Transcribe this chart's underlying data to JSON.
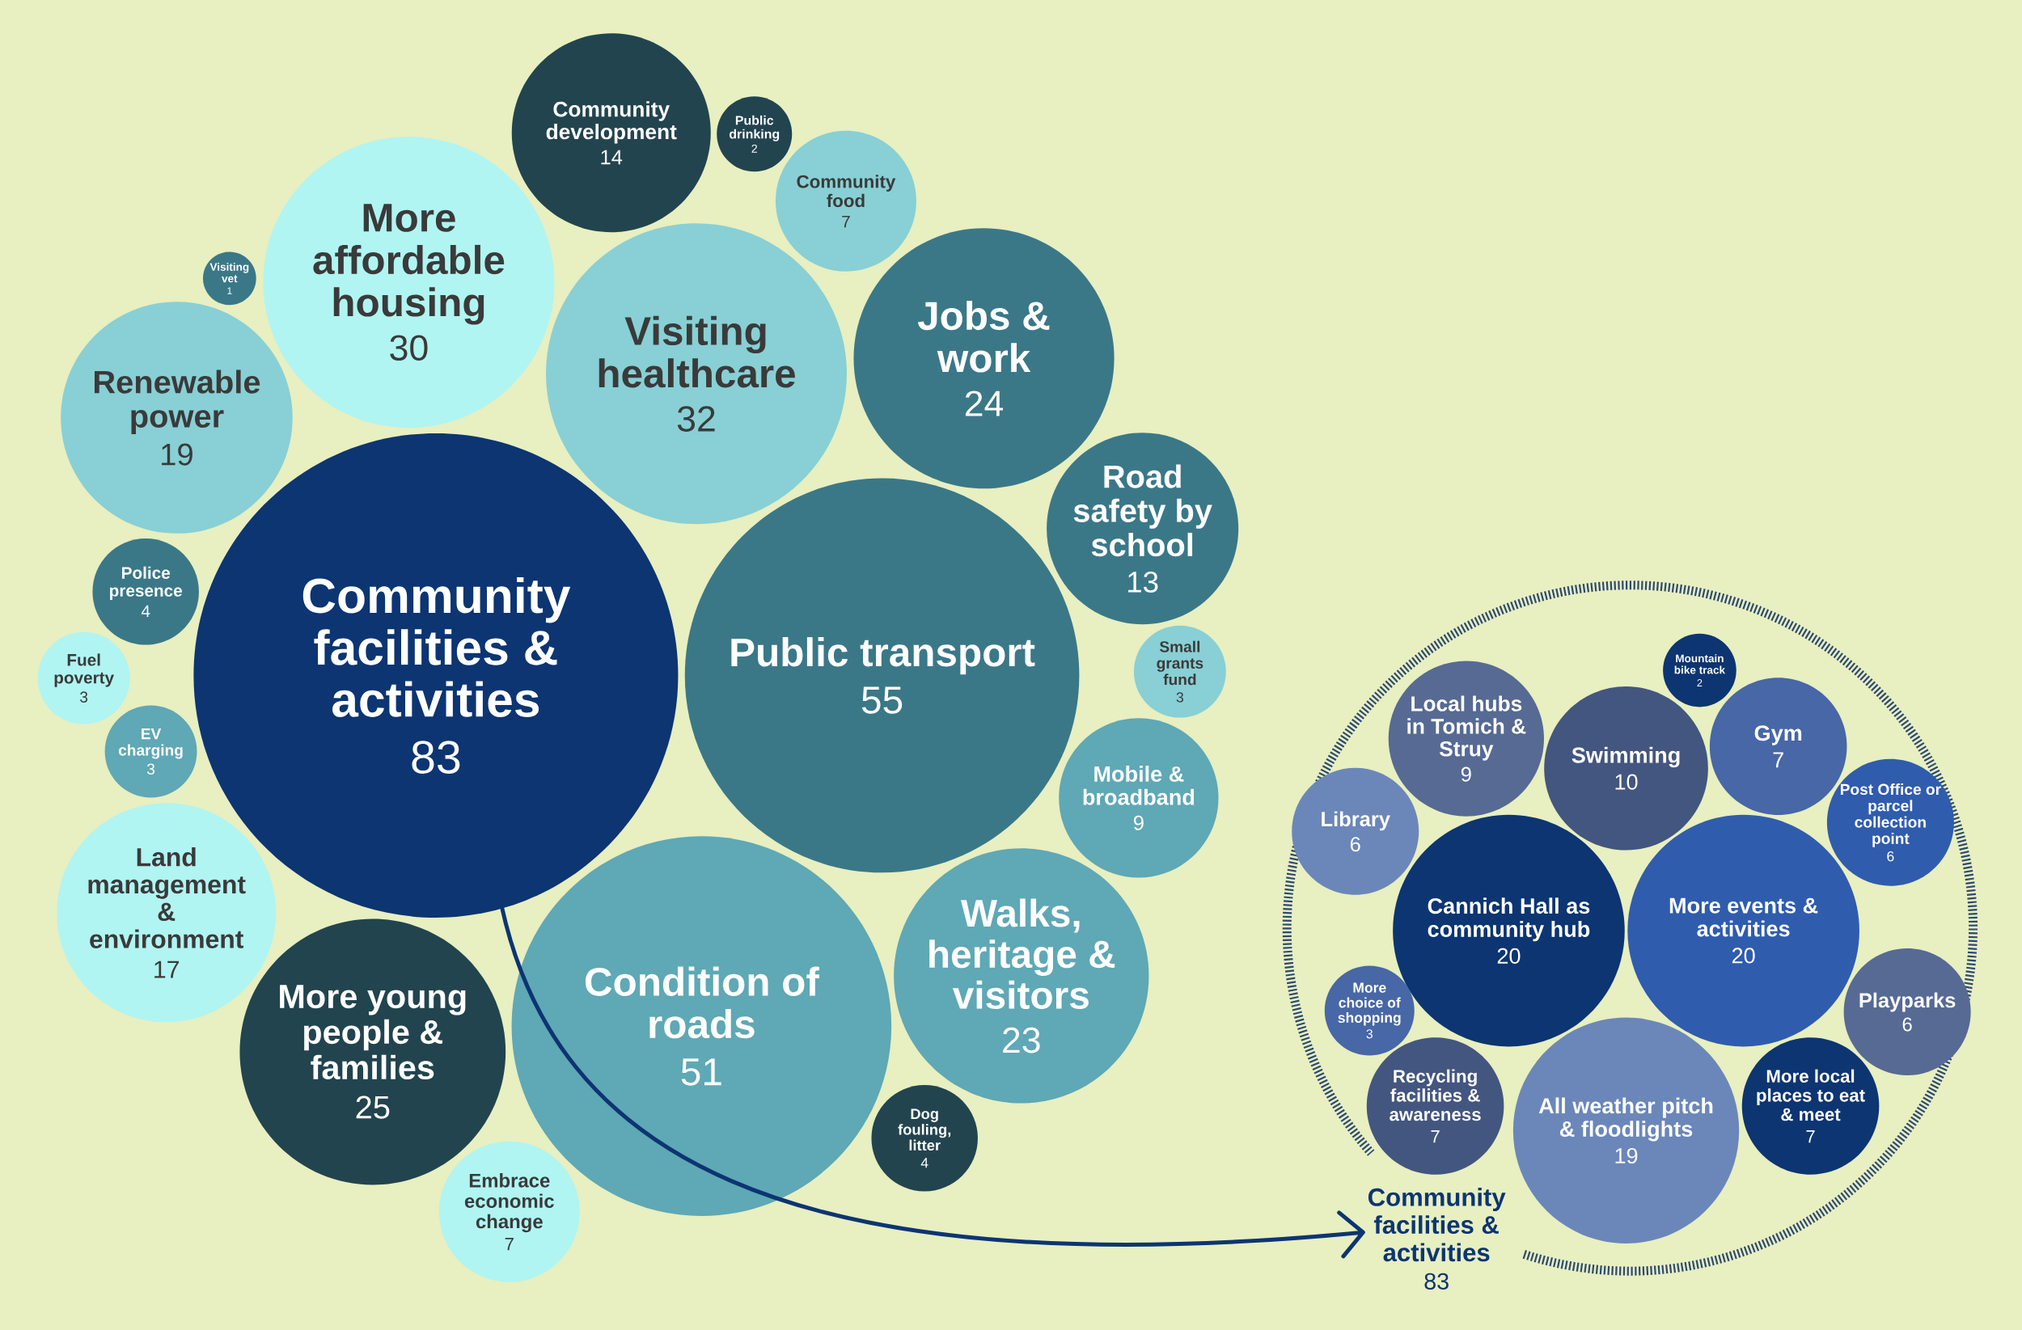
{
  "chart_data": [
    {
      "type": "other",
      "data_labels": true,
      "categories": [
        "Community facilities & activities",
        "Public transport",
        "Condition of roads",
        "Visiting healthcare",
        "More affordable housing",
        "More young people & families",
        "Jobs & work",
        "Walks, heritage & visitors",
        "Renewable power",
        "Land management & environment",
        "Community development",
        "Road safety by school",
        "Mobile & broadband",
        "Community food",
        "Embrace economic change",
        "Police presence",
        "Dog fouling, litter",
        "EV charging",
        "Fuel poverty",
        "Small grants fund",
        "Public drinking",
        "Visiting vet"
      ],
      "values": [
        83,
        55,
        51,
        32,
        30,
        25,
        24,
        23,
        19,
        17,
        14,
        13,
        9,
        7,
        7,
        4,
        4,
        3,
        3,
        3,
        2,
        1
      ],
      "colors": [
        "#0c3572",
        "#3a7888",
        "#5fa8b5",
        "#88d0d5",
        "#b0f5f2",
        "#22444f",
        "#3a7888",
        "#5fa8b5",
        "#88d0d5",
        "#b0f5f2",
        "#22444f",
        "#3a7888",
        "#5fa8b5",
        "#88d0d5",
        "#b0f5f2",
        "#3a7888",
        "#22444f",
        "#5fa8b5",
        "#b0f5f2",
        "#88d0d5",
        "#22444f",
        "#3a7888"
      ]
    },
    {
      "type": "other",
      "data_labels": true,
      "title": "Community facilities & activities",
      "annotations": [
        "83"
      ],
      "categories": [
        "Cannich Hall as community hub",
        "More events & activities",
        "All weather pitch & floodlights",
        "Swimming",
        "Local hubs in Tomich & Struy",
        "Gym",
        "Recycling facilities & awareness",
        "More local places to eat & meet",
        "Library",
        "Post Office or parcel collection point",
        "Playparks",
        "More choice of shopping",
        "Mountain bike track"
      ],
      "values": [
        20,
        20,
        19,
        10,
        9,
        7,
        7,
        7,
        6,
        6,
        6,
        3,
        2
      ],
      "colors": [
        "#0c3572",
        "#305cae",
        "#6b87b9",
        "#43567f",
        "#566a94",
        "#4767a6",
        "#43567f",
        "#0c3572",
        "#6b87b9",
        "#305cae",
        "#566a94",
        "#4767a6",
        "#0c3572"
      ]
    }
  ]
}
